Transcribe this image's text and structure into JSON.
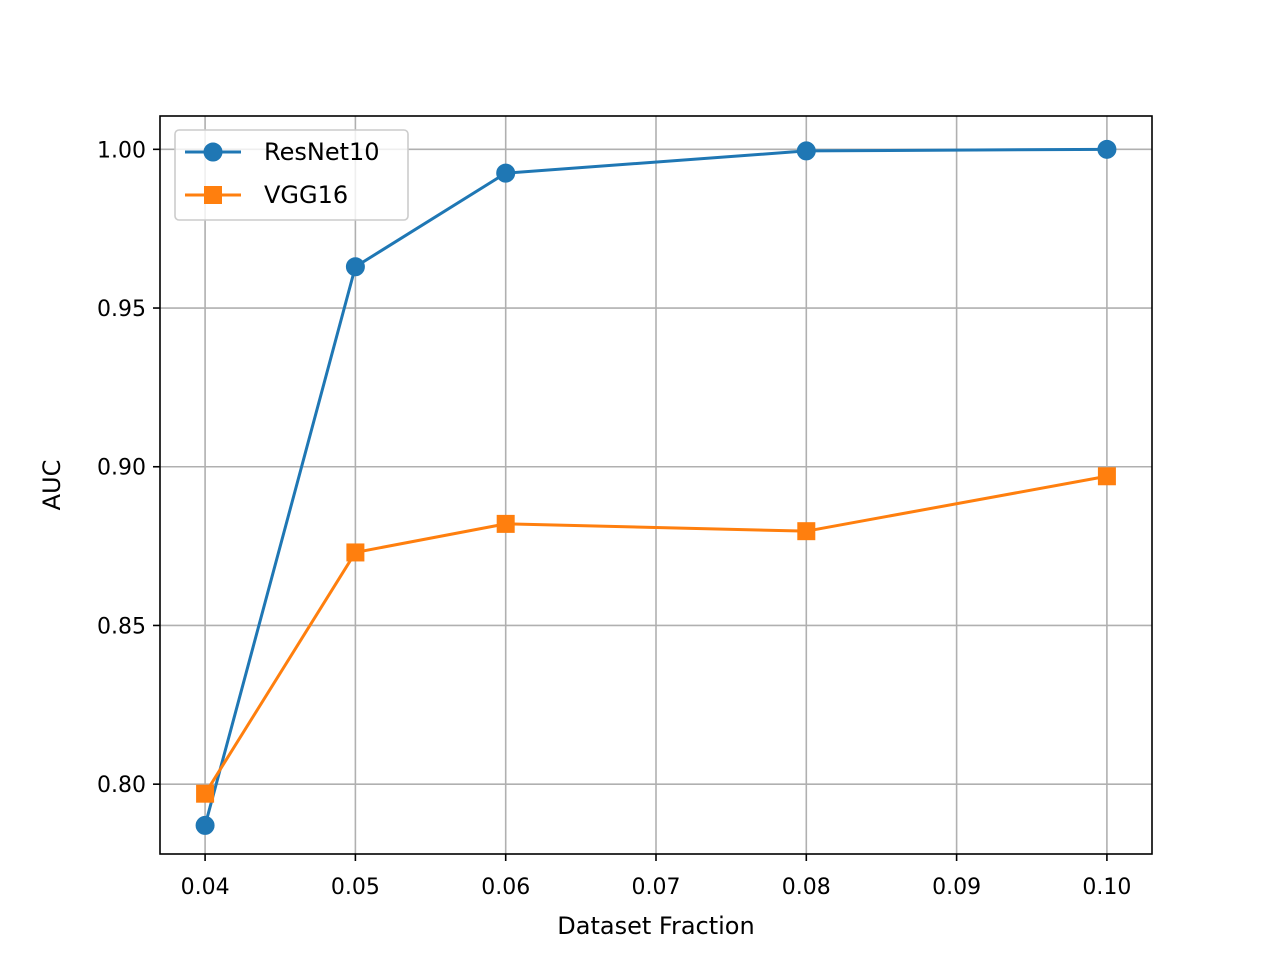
{
  "chart_data": {
    "type": "line",
    "title": "",
    "xlabel": "Dataset Fraction",
    "ylabel": "AUC",
    "xlim": [
      0.037,
      0.103
    ],
    "ylim": [
      0.778,
      1.0105
    ],
    "grid": true,
    "legend_position": "top-left",
    "x_ticks": [
      0.04,
      0.05,
      0.06,
      0.07,
      0.08,
      0.09,
      0.1
    ],
    "x_tick_labels": [
      "0.04",
      "0.05",
      "0.06",
      "0.07",
      "0.08",
      "0.09",
      "0.10"
    ],
    "y_ticks": [
      0.8,
      0.85,
      0.9,
      0.95,
      1.0
    ],
    "y_tick_labels": [
      "0.80",
      "0.85",
      "0.90",
      "0.95",
      "1.00"
    ],
    "series": [
      {
        "name": "ResNet10",
        "color": "#1f77b4",
        "marker": "circle",
        "x": [
          0.04,
          0.05,
          0.06,
          0.08,
          0.1
        ],
        "y": [
          0.787,
          0.963,
          0.9925,
          0.9995,
          1.0
        ]
      },
      {
        "name": "VGG16",
        "color": "#ff7f0e",
        "marker": "square",
        "x": [
          0.04,
          0.05,
          0.06,
          0.08,
          0.1
        ],
        "y": [
          0.797,
          0.873,
          0.882,
          0.8797,
          0.897
        ]
      }
    ]
  }
}
